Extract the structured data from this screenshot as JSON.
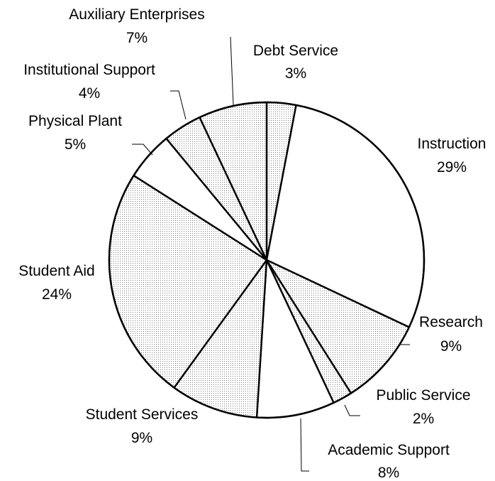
{
  "chart_data": {
    "type": "pie",
    "title": "",
    "start_angle_deg": 0,
    "direction": "clockwise",
    "slices": [
      {
        "label": "Debt Service",
        "value": 3,
        "value_label": "3%",
        "fill": "dots"
      },
      {
        "label": "Instruction",
        "value": 29,
        "value_label": "29%",
        "fill": "white"
      },
      {
        "label": "Research",
        "value": 9,
        "value_label": "9%",
        "fill": "dots"
      },
      {
        "label": "Public Service",
        "value": 2,
        "value_label": "2%",
        "fill": "dots"
      },
      {
        "label": "Academic Support",
        "value": 8,
        "value_label": "8%",
        "fill": "white"
      },
      {
        "label": "Student Services",
        "value": 9,
        "value_label": "9%",
        "fill": "dots"
      },
      {
        "label": "Student Aid",
        "value": 24,
        "value_label": "24%",
        "fill": "dots"
      },
      {
        "label": "Physical Plant",
        "value": 5,
        "value_label": "5%",
        "fill": "white"
      },
      {
        "label": "Institutional Support",
        "value": 4,
        "value_label": "4%",
        "fill": "dots"
      },
      {
        "label": "Auxiliary Enterprises",
        "value": 7,
        "value_label": "7%",
        "fill": "dots"
      }
    ]
  }
}
